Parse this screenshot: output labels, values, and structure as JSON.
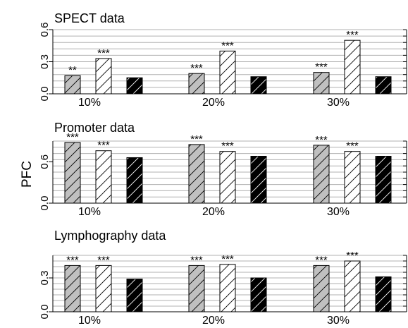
{
  "ylabel": "PFC",
  "colors": {
    "bar1_fill": "#c0c0c0",
    "bar2_fill": "#ffffff",
    "bar3_fill": "#000000",
    "hatch_dark": "#000000",
    "hatch_light": "#ffffff",
    "grid": "#b0b0b0"
  },
  "chart_data": [
    {
      "type": "bar",
      "title": "SPECT data",
      "categories": [
        "10%",
        "20%",
        "30%"
      ],
      "ylim": [
        0,
        0.6
      ],
      "yticks": [
        "0.0",
        "0.3",
        "0.6"
      ],
      "ytick_values": [
        0,
        0.3,
        0.6
      ],
      "grid": true,
      "series": [
        {
          "values": [
            0.17,
            0.19,
            0.2
          ],
          "annotations": [
            "**",
            "***",
            "***"
          ]
        },
        {
          "values": [
            0.33,
            0.4,
            0.5
          ],
          "annotations": [
            "***",
            "***",
            "***"
          ]
        },
        {
          "values": [
            0.15,
            0.16,
            0.16
          ],
          "annotations": [
            "",
            "",
            ""
          ]
        }
      ]
    },
    {
      "type": "bar",
      "title": "Promoter data",
      "categories": [
        "10%",
        "20%",
        "30%"
      ],
      "ylim": [
        0,
        0.9
      ],
      "yticks": [
        "0.0",
        "0.6"
      ],
      "ytick_values": [
        0,
        0.6
      ],
      "grid": true,
      "series": [
        {
          "values": [
            0.88,
            0.85,
            0.84
          ],
          "annotations": [
            "***",
            "***",
            "***"
          ]
        },
        {
          "values": [
            0.76,
            0.75,
            0.75
          ],
          "annotations": [
            "***",
            "***",
            "***"
          ]
        },
        {
          "values": [
            0.66,
            0.68,
            0.68
          ],
          "annotations": [
            "",
            "",
            ""
          ]
        }
      ]
    },
    {
      "type": "bar",
      "title": "Lymphography data",
      "categories": [
        "10%",
        "20%",
        "30%"
      ],
      "ylim": [
        0,
        0.5
      ],
      "yticks": [
        "0.0",
        "0.3"
      ],
      "ytick_values": [
        0,
        0.3
      ],
      "grid": true,
      "series": [
        {
          "values": [
            0.41,
            0.41,
            0.41
          ],
          "annotations": [
            "***",
            "***",
            "***"
          ]
        },
        {
          "values": [
            0.41,
            0.42,
            0.45
          ],
          "annotations": [
            "***",
            "***",
            "***"
          ]
        },
        {
          "values": [
            0.29,
            0.3,
            0.31
          ],
          "annotations": [
            "",
            "",
            ""
          ]
        }
      ]
    }
  ]
}
